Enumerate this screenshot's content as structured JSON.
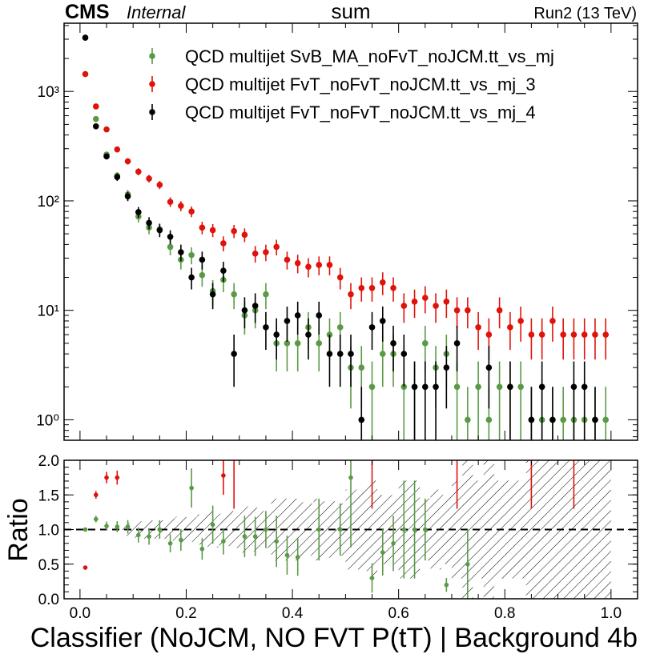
{
  "header": {
    "cms": "CMS",
    "internal": "Internal",
    "title": "sum",
    "run": "Run2 (13 TeV)"
  },
  "chart_data": [
    {
      "type": "scatter",
      "panel": "main",
      "yscale": "log",
      "xlim": [
        -0.03,
        1.05
      ],
      "ylim": [
        0.65,
        4200
      ],
      "y_ticks": [
        {
          "value": 1,
          "label": "10⁰"
        },
        {
          "value": 10,
          "label": "10¹"
        },
        {
          "value": 100,
          "label": "10²"
        },
        {
          "value": 1000,
          "label": "10³"
        }
      ],
      "legend_position": "top-right",
      "x": [
        0.01,
        0.03,
        0.05,
        0.07,
        0.09,
        0.11,
        0.13,
        0.15,
        0.17,
        0.19,
        0.21,
        0.23,
        0.25,
        0.27,
        0.29,
        0.31,
        0.33,
        0.35,
        0.37,
        0.39,
        0.41,
        0.43,
        0.45,
        0.47,
        0.49,
        0.51,
        0.53,
        0.55,
        0.57,
        0.59,
        0.61,
        0.63,
        0.65,
        0.67,
        0.69,
        0.71,
        0.73,
        0.75,
        0.77,
        0.79,
        0.81,
        0.83,
        0.85,
        0.87,
        0.89,
        0.91,
        0.93,
        0.95,
        0.97,
        0.99
      ],
      "series": [
        {
          "name": "QCD multijet SvB_MA_noFvT_noJCM.tt_vs_mj",
          "color": "#5a9a46",
          "values": [
            3100,
            560,
            265,
            170,
            115,
            72,
            57,
            55,
            38,
            29,
            32,
            21,
            15,
            19,
            14,
            9,
            10,
            14,
            5,
            5,
            5,
            7,
            5,
            6,
            7,
            3,
            3,
            2,
            4,
            4,
            2,
            2,
            5,
            3,
            4,
            2,
            1,
            2,
            1,
            2,
            2,
            2,
            1,
            1,
            1,
            1,
            1,
            1,
            1,
            1
          ]
        },
        {
          "name": "QCD multijet FvT_noFvT_noJCM.tt_vs_mj_3",
          "color": "#e0120b",
          "values": [
            1440,
            730,
            450,
            295,
            230,
            185,
            160,
            140,
            98,
            90,
            80,
            57,
            54,
            41,
            53,
            49,
            33,
            34,
            38,
            29,
            27,
            25,
            26,
            26,
            20,
            14,
            16,
            16,
            18,
            16,
            11,
            12,
            13,
            11,
            12,
            10,
            10,
            7,
            6,
            10,
            7,
            8,
            6,
            6,
            8,
            6,
            6,
            6,
            6,
            6
          ]
        },
        {
          "name": "QCD multijet FvT_noFvT_noJCM.tt_vs_mj_4",
          "color": "#000000",
          "values": [
            3100,
            480,
            255,
            165,
            110,
            79,
            63,
            54,
            47,
            34,
            20,
            29,
            14,
            23,
            4,
            10,
            11,
            7,
            6,
            8,
            9,
            6,
            9,
            4,
            4,
            4,
            1,
            7,
            8,
            5,
            4,
            2,
            2,
            2,
            3,
            5,
            null,
            null,
            3,
            null,
            2,
            null,
            1,
            2,
            1,
            null,
            2,
            2,
            1,
            null
          ]
        }
      ]
    },
    {
      "type": "scatter",
      "panel": "ratio",
      "ylabel": "Ratio",
      "ylim": [
        0.0,
        2.0
      ],
      "y_tick_labels": [
        "0.0",
        "0.5",
        "1.0",
        "1.5",
        "2.0"
      ],
      "x_tick_labels": [
        "0.0",
        "0.2",
        "0.4",
        "0.6",
        "0.8",
        "1.0"
      ],
      "xlabel": "Classifier (NoJCM, NO FVT P(tT) | Background 4b",
      "reference_line": 1.0,
      "series": [
        {
          "name": "QCD multijet SvB_MA_noFvT_noJCM.tt_vs_mj",
          "color": "#5a9a46",
          "values": [
            1.0,
            1.15,
            1.05,
            1.04,
            1.04,
            0.92,
            0.9,
            1.0,
            0.8,
            0.85,
            1.6,
            0.72,
            1.07,
            0.83,
            null,
            0.9,
            0.9,
            1.0,
            0.83,
            0.63,
            0.6,
            null,
            1.0,
            null,
            1.0,
            1.75,
            null,
            0.3,
            0.67,
            0.8,
            1.0,
            1.0,
            1.0,
            null,
            0.2,
            null,
            0.5,
            null,
            null,
            null,
            null,
            null,
            null,
            null,
            null,
            null,
            null,
            null,
            null,
            null
          ]
        },
        {
          "name": "QCD multijet FvT_noFvT_noJCM.tt_vs_mj_3",
          "color": "#e0120b",
          "values": [
            0.45,
            1.5,
            1.75,
            1.75,
            null,
            null,
            null,
            null,
            null,
            null,
            null,
            null,
            null,
            1.78,
            null,
            null,
            null,
            null,
            null,
            null,
            null,
            null,
            null,
            null,
            null,
            null,
            null,
            null,
            null,
            null,
            null,
            null,
            null,
            null,
            null,
            null,
            null,
            null,
            null,
            null,
            null,
            null,
            null,
            null,
            null,
            null,
            null,
            null,
            null,
            null
          ]
        }
      ]
    }
  ]
}
